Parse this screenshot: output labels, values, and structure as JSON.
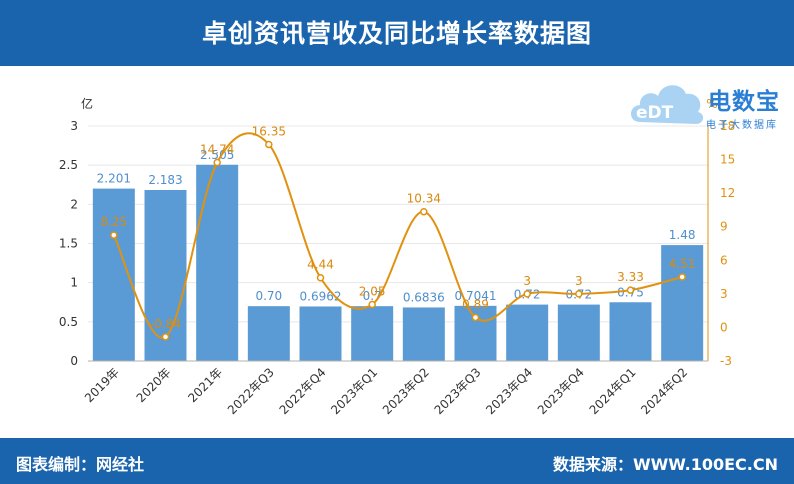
{
  "header": {
    "title": "卓创资讯营收及同比增长率数据图"
  },
  "footer": {
    "left": "图表编制：网经社",
    "right": "数据来源：WWW.100EC.CN"
  },
  "logo": {
    "name": "电数宝",
    "sub": "电子大数据库"
  },
  "colors": {
    "header_bg": "#1a64ad",
    "bar": "#5b9bd5",
    "line": "#e0920f",
    "bar_label": "#4f8fce",
    "line_label": "#d98a10"
  },
  "chart_data": {
    "type": "bar",
    "categories": [
      "2019年",
      "2020年",
      "2021年",
      "2022年Q3",
      "2022年Q4",
      "2023年Q1",
      "2023年Q2",
      "2023年Q3",
      "2023年Q4",
      "2023年Q4",
      "2024年Q1",
      "2024年Q2"
    ],
    "series": [
      {
        "type": "bar",
        "axis": "left",
        "values": [
          2.201,
          2.183,
          2.505,
          0.7,
          0.6962,
          0.7,
          0.6836,
          0.7041,
          0.72,
          0.72,
          0.75,
          1.48
        ],
        "labels": [
          "2.201",
          "2.183",
          "2.505",
          "0.70",
          "0.6962",
          "0.7",
          "0.6836",
          "0.7041",
          "0.72",
          "0.72",
          "0.75",
          "1.48"
        ]
      },
      {
        "type": "line",
        "axis": "right",
        "values": [
          8.25,
          -0.84,
          14.74,
          16.35,
          4.44,
          2.05,
          10.34,
          0.89,
          3,
          3,
          3.33,
          4.51
        ],
        "labels": [
          "8.25",
          "-0.84",
          "14.74",
          "16.35",
          "4.44",
          "2.05",
          "10.34",
          "0.89",
          "3",
          "3",
          "3.33",
          "4.51"
        ]
      }
    ],
    "left_axis": {
      "unit": "亿",
      "min": 0,
      "max": 3,
      "ticks": [
        "0",
        "0.5",
        "1",
        "1.5",
        "2",
        "2.5",
        "3"
      ]
    },
    "right_axis": {
      "unit": "%",
      "min": -3,
      "max": 18,
      "ticks": [
        "-3",
        "0",
        "3",
        "6",
        "9",
        "12",
        "15",
        "18"
      ]
    },
    "grid": true
  }
}
